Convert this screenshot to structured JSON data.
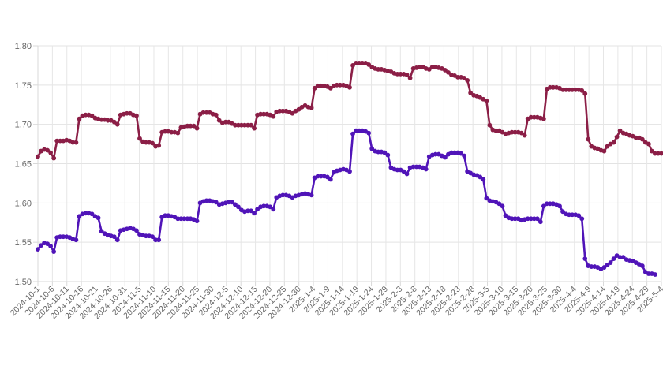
{
  "chart_data": {
    "type": "line",
    "title": "",
    "xlabel": "",
    "ylabel": "",
    "ylim": [
      1.5,
      1.8
    ],
    "y_ticks": [
      "1.80",
      "1.75",
      "1.70",
      "1.65",
      "1.60",
      "1.55",
      "1.50"
    ],
    "x_tick_labels": [
      "2024-10-1",
      "2024-10-6",
      "2024-10-11",
      "2024-10-16",
      "2024-10-21",
      "2024-10-26",
      "2024-10-31",
      "2024-11-5",
      "2024-11-10",
      "2024-11-15",
      "2024-11-20",
      "2024-11-25",
      "2024-11-30",
      "2024-12-5",
      "2024-12-10",
      "2024-12-15",
      "2024-12-20",
      "2024-12-25",
      "2024-12-30",
      "2025-1-4",
      "2025-1-9",
      "2025-1-14",
      "2025-1-19",
      "2025-1-24",
      "2025-1-29",
      "2025-2-3",
      "2025-2-8",
      "2025-2-13",
      "2025-2-18",
      "2025-2-23",
      "2025-2-28",
      "2025-3-5",
      "2025-3-10",
      "2025-3-15",
      "2025-3-20",
      "2025-3-25",
      "2025-3-30",
      "2025-4-4",
      "2025-4-9",
      "2025-4-14",
      "2025-4-19",
      "2025-4-24",
      "2025-4-29",
      "2025-5-4"
    ],
    "grid": true,
    "legend": "none",
    "series": [
      {
        "color": "#8b1e46",
        "values": [
          1.659,
          1.666,
          1.668,
          1.667,
          1.664,
          1.657,
          1.679,
          1.679,
          1.679,
          1.68,
          1.679,
          1.677,
          1.677,
          1.707,
          1.711,
          1.712,
          1.712,
          1.711,
          1.708,
          1.707,
          1.706,
          1.706,
          1.705,
          1.705,
          1.703,
          1.7,
          1.712,
          1.713,
          1.714,
          1.714,
          1.712,
          1.711,
          1.682,
          1.678,
          1.677,
          1.677,
          1.676,
          1.672,
          1.673,
          1.69,
          1.691,
          1.691,
          1.69,
          1.69,
          1.689,
          1.696,
          1.697,
          1.698,
          1.698,
          1.698,
          1.695,
          1.713,
          1.715,
          1.715,
          1.715,
          1.713,
          1.712,
          1.705,
          1.702,
          1.703,
          1.703,
          1.701,
          1.699,
          1.699,
          1.699,
          1.699,
          1.699,
          1.699,
          1.695,
          1.712,
          1.713,
          1.713,
          1.713,
          1.712,
          1.71,
          1.716,
          1.717,
          1.717,
          1.717,
          1.716,
          1.714,
          1.717,
          1.719,
          1.722,
          1.724,
          1.722,
          1.721,
          1.746,
          1.749,
          1.749,
          1.749,
          1.748,
          1.746,
          1.749,
          1.75,
          1.75,
          1.75,
          1.749,
          1.747,
          1.775,
          1.778,
          1.778,
          1.778,
          1.778,
          1.776,
          1.773,
          1.771,
          1.77,
          1.77,
          1.769,
          1.768,
          1.767,
          1.765,
          1.764,
          1.764,
          1.764,
          1.763,
          1.759,
          1.771,
          1.772,
          1.773,
          1.773,
          1.771,
          1.77,
          1.773,
          1.773,
          1.772,
          1.771,
          1.769,
          1.766,
          1.763,
          1.762,
          1.76,
          1.76,
          1.759,
          1.756,
          1.74,
          1.737,
          1.736,
          1.734,
          1.732,
          1.73,
          1.699,
          1.693,
          1.692,
          1.692,
          1.69,
          1.688,
          1.689,
          1.69,
          1.69,
          1.69,
          1.689,
          1.686,
          1.707,
          1.709,
          1.709,
          1.709,
          1.708,
          1.707,
          1.745,
          1.747,
          1.747,
          1.747,
          1.746,
          1.744,
          1.744,
          1.744,
          1.744,
          1.744,
          1.744,
          1.743,
          1.739,
          1.681,
          1.672,
          1.67,
          1.669,
          1.667,
          1.666,
          1.672,
          1.675,
          1.677,
          1.684,
          1.692,
          1.689,
          1.688,
          1.686,
          1.685,
          1.683,
          1.683,
          1.681,
          1.677,
          1.675,
          1.666,
          1.663,
          1.663,
          1.663
        ]
      },
      {
        "color": "#5014b8",
        "values": [
          1.541,
          1.546,
          1.549,
          1.548,
          1.545,
          1.538,
          1.556,
          1.557,
          1.557,
          1.557,
          1.556,
          1.554,
          1.553,
          1.583,
          1.586,
          1.587,
          1.587,
          1.586,
          1.583,
          1.581,
          1.564,
          1.561,
          1.559,
          1.558,
          1.557,
          1.553,
          1.565,
          1.566,
          1.567,
          1.568,
          1.567,
          1.565,
          1.56,
          1.559,
          1.558,
          1.558,
          1.557,
          1.553,
          1.553,
          1.582,
          1.584,
          1.584,
          1.583,
          1.582,
          1.58,
          1.58,
          1.58,
          1.58,
          1.58,
          1.579,
          1.577,
          1.6,
          1.602,
          1.603,
          1.603,
          1.602,
          1.601,
          1.598,
          1.599,
          1.6,
          1.601,
          1.601,
          1.598,
          1.595,
          1.591,
          1.589,
          1.59,
          1.59,
          1.587,
          1.592,
          1.595,
          1.596,
          1.596,
          1.595,
          1.592,
          1.607,
          1.609,
          1.61,
          1.61,
          1.609,
          1.607,
          1.609,
          1.61,
          1.611,
          1.612,
          1.611,
          1.61,
          1.632,
          1.634,
          1.634,
          1.634,
          1.633,
          1.63,
          1.639,
          1.641,
          1.642,
          1.643,
          1.642,
          1.64,
          1.688,
          1.692,
          1.692,
          1.692,
          1.691,
          1.689,
          1.669,
          1.666,
          1.665,
          1.665,
          1.664,
          1.661,
          1.645,
          1.643,
          1.642,
          1.642,
          1.64,
          1.637,
          1.645,
          1.646,
          1.646,
          1.646,
          1.645,
          1.643,
          1.659,
          1.661,
          1.662,
          1.662,
          1.66,
          1.658,
          1.662,
          1.664,
          1.664,
          1.664,
          1.663,
          1.66,
          1.64,
          1.638,
          1.636,
          1.635,
          1.633,
          1.63,
          1.606,
          1.603,
          1.602,
          1.601,
          1.599,
          1.596,
          1.584,
          1.581,
          1.58,
          1.58,
          1.58,
          1.578,
          1.579,
          1.58,
          1.58,
          1.58,
          1.58,
          1.576,
          1.596,
          1.599,
          1.599,
          1.599,
          1.598,
          1.596,
          1.589,
          1.586,
          1.585,
          1.585,
          1.585,
          1.584,
          1.58,
          1.529,
          1.52,
          1.519,
          1.519,
          1.518,
          1.516,
          1.518,
          1.521,
          1.524,
          1.529,
          1.533,
          1.531,
          1.531,
          1.528,
          1.527,
          1.526,
          1.524,
          1.522,
          1.52,
          1.512,
          1.51,
          1.51,
          1.509
        ]
      }
    ]
  }
}
